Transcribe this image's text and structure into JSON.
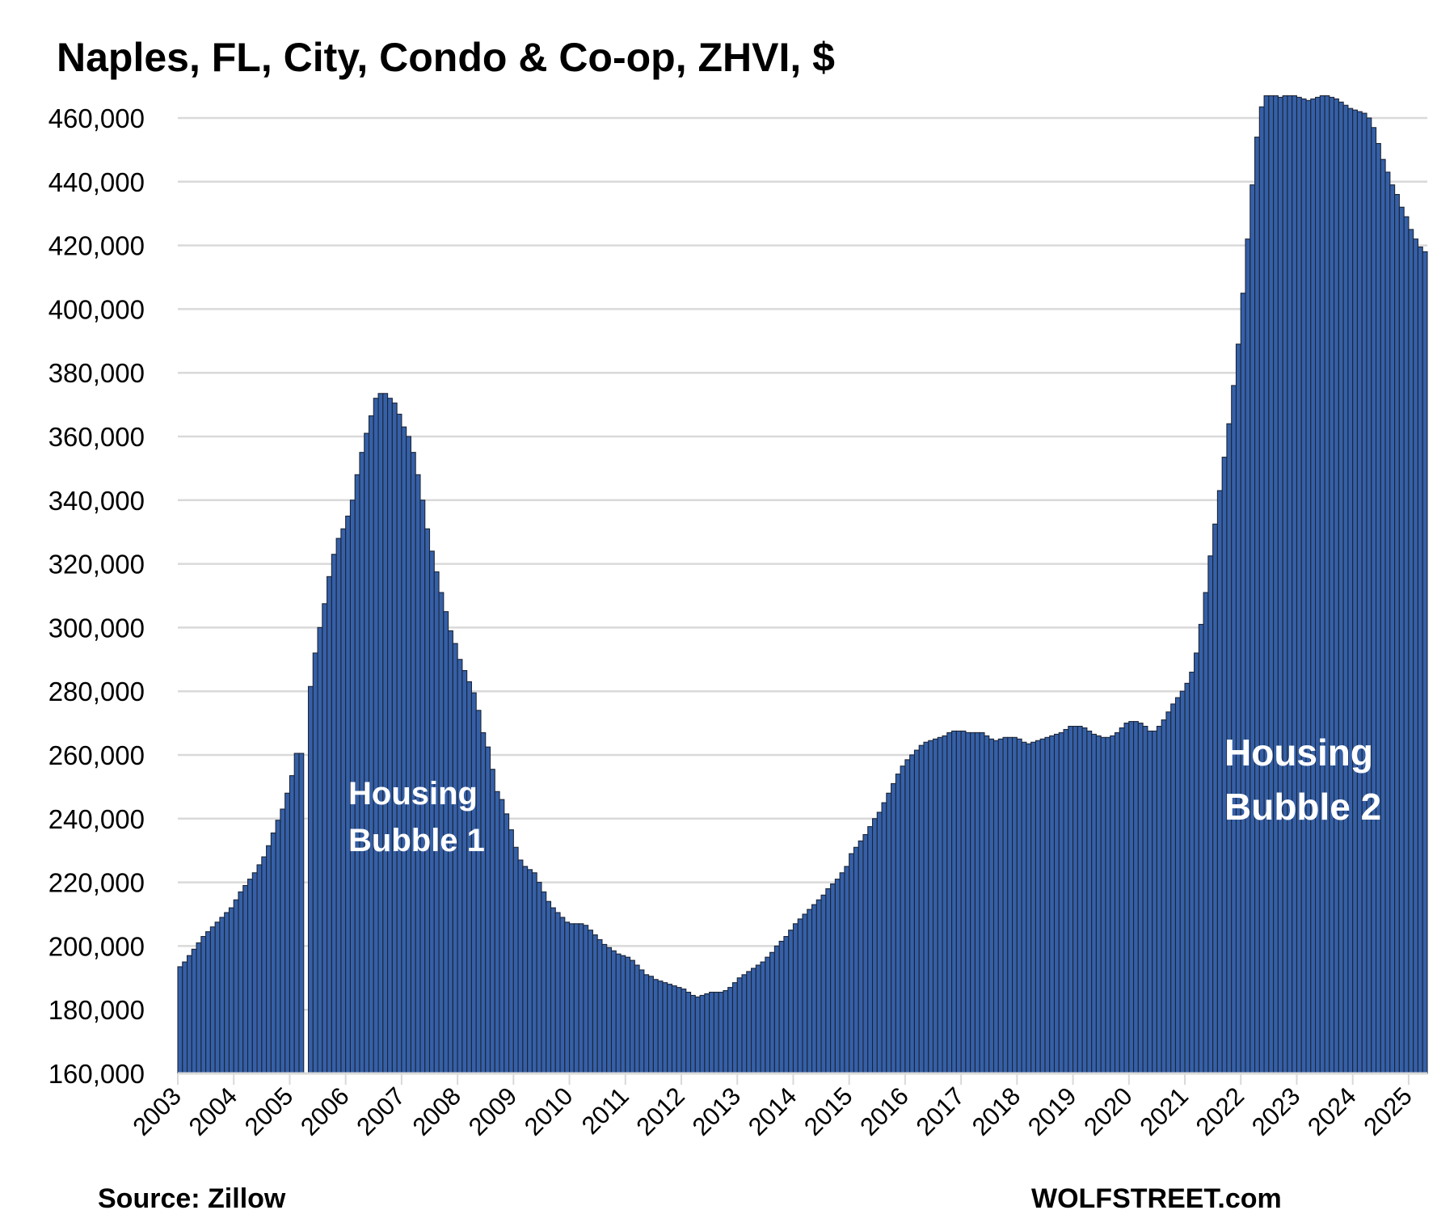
{
  "chart_data": {
    "type": "bar",
    "title": "Naples, FL, City, Condo & Co-op, ZHVI, $",
    "xlabel": "",
    "ylabel": "",
    "ylim": [
      160000,
      470000
    ],
    "yticks": [
      160000,
      180000,
      200000,
      220000,
      240000,
      260000,
      280000,
      300000,
      320000,
      340000,
      360000,
      380000,
      400000,
      420000,
      440000,
      460000
    ],
    "ytick_labels": [
      "160,000",
      "180,000",
      "200,000",
      "220,000",
      "240,000",
      "260,000",
      "280,000",
      "300,000",
      "320,000",
      "340,000",
      "360,000",
      "380,000",
      "400,000",
      "420,000",
      "440,000",
      "460,000"
    ],
    "xtick_labels": [
      "2003",
      "2004",
      "2005",
      "2006",
      "2007",
      "2008",
      "2009",
      "2010",
      "2011",
      "2012",
      "2013",
      "2014",
      "2015",
      "2016",
      "2017",
      "2018",
      "2019",
      "2020",
      "2021",
      "2022",
      "2023",
      "2024",
      "2025"
    ],
    "start_month": "2003-01",
    "frequency": "monthly",
    "grid": true,
    "series": [
      {
        "name": "Condo & Co-op ZHVI",
        "color": "#3560a8",
        "values": [
          193500,
          195000,
          197000,
          199000,
          201000,
          203000,
          204500,
          206000,
          207500,
          209000,
          210500,
          212000,
          214500,
          217000,
          219000,
          221000,
          223000,
          225500,
          228000,
          231500,
          235500,
          239500,
          243000,
          248000,
          253500,
          260500,
          260500,
          null,
          281500,
          292000,
          300000,
          307500,
          316000,
          323000,
          328000,
          331000,
          335000,
          340000,
          348000,
          355000,
          361000,
          366500,
          372000,
          373500,
          373500,
          372000,
          370500,
          367000,
          363000,
          360000,
          355000,
          348000,
          340000,
          331000,
          324000,
          317500,
          311000,
          305000,
          299000,
          295000,
          290000,
          286500,
          283000,
          279500,
          274000,
          267000,
          262500,
          255500,
          248500,
          246000,
          241500,
          236500,
          231000,
          227000,
          225000,
          224000,
          223000,
          220000,
          217000,
          214000,
          212000,
          210500,
          209000,
          207500,
          207000,
          207000,
          207000,
          206500,
          205000,
          203500,
          202000,
          200500,
          199500,
          198500,
          197500,
          197000,
          196500,
          195500,
          194000,
          192500,
          191000,
          190500,
          189500,
          189000,
          188500,
          188000,
          187500,
          187000,
          186500,
          185500,
          184500,
          184000,
          184500,
          185000,
          185500,
          185500,
          185500,
          186000,
          187000,
          188500,
          190000,
          191000,
          192000,
          193000,
          194000,
          195000,
          196500,
          198000,
          200000,
          201500,
          203000,
          205000,
          207000,
          208500,
          210000,
          211500,
          213000,
          214500,
          216000,
          218000,
          219500,
          221000,
          223000,
          225000,
          229000,
          231000,
          233000,
          235000,
          237500,
          240000,
          242000,
          245000,
          248000,
          251000,
          254000,
          256500,
          258500,
          260000,
          261500,
          263000,
          264000,
          264500,
          265000,
          265500,
          266000,
          267000,
          267500,
          267500,
          267500,
          267000,
          267000,
          267000,
          267000,
          266000,
          265000,
          264500,
          265000,
          265500,
          265500,
          265500,
          265000,
          264000,
          263500,
          264000,
          264500,
          265000,
          265500,
          266000,
          266500,
          267000,
          268000,
          269000,
          269000,
          269000,
          268500,
          267500,
          266500,
          266000,
          265500,
          265500,
          266000,
          267000,
          268500,
          270000,
          270500,
          270500,
          270000,
          269000,
          267500,
          267500,
          269000,
          271000,
          273500,
          276000,
          278000,
          280000,
          282500,
          286000,
          292000,
          301000,
          311000,
          322500,
          332500,
          343000,
          353500,
          364000,
          376000,
          389000,
          405000,
          422000,
          439000,
          454000,
          463500,
          467000,
          467000,
          467000,
          466500,
          467000,
          467000,
          467000,
          466500,
          466000,
          465500,
          466000,
          466500,
          467000,
          467000,
          466500,
          466000,
          465000,
          464000,
          463000,
          462500,
          462000,
          461500,
          460000,
          457000,
          452000,
          447000,
          443000,
          439000,
          436000,
          432000,
          429000,
          425000,
          422000,
          419500,
          418000
        ]
      }
    ],
    "annotations": [
      {
        "lines": [
          "Housing",
          "Bubble 1"
        ]
      },
      {
        "lines": [
          "Housing",
          "Bubble 2"
        ]
      }
    ],
    "source": "Source: Zillow",
    "brand": "WOLFSTREET.com"
  }
}
